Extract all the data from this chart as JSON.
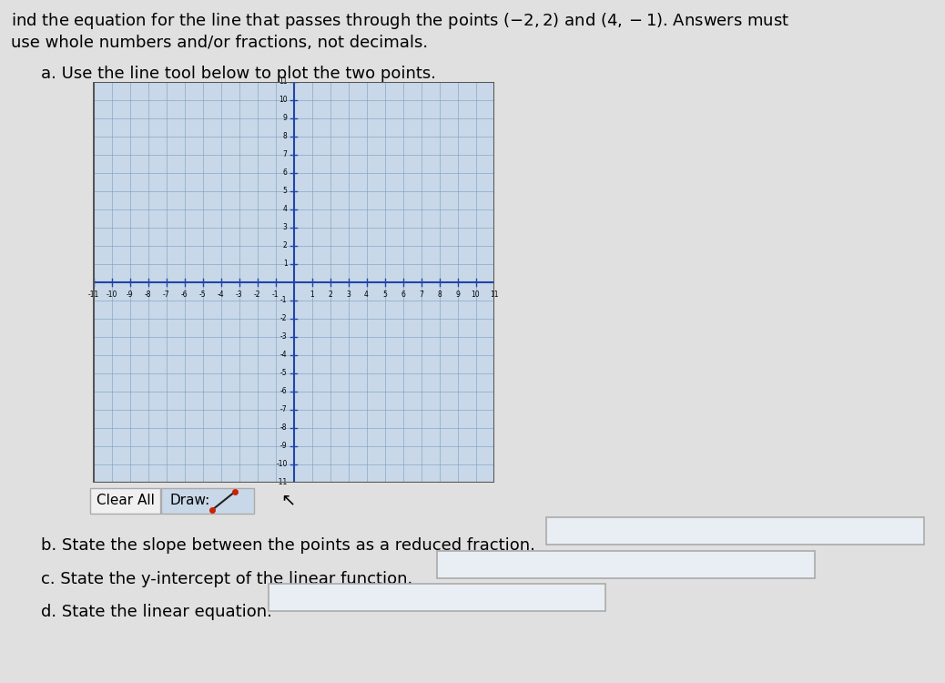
{
  "title_line1": "ind the equation for the line that passes through the points (-2, 2) and (4, -1). Answers must",
  "title_line2": "use whole numbers and/or fractions, not decimals.",
  "part_a": "a. Use the line tool below to plot the two points.",
  "part_b": "b. State the slope between the points as a reduced fraction.",
  "part_c": "c. State the y-intercept of the linear function.",
  "part_d": "d. State the linear equation.",
  "grid_min": -11,
  "grid_max": 11,
  "bg_color": "#c8d8e8",
  "grid_color_major": "#7a9cbf",
  "grid_color_minor": "#a8c0d8",
  "axis_color": "#2244aa",
  "page_bg": "#e0e0e0",
  "point1": [
    -2,
    2
  ],
  "point2": [
    4,
    -1
  ],
  "box_fill": "#e8eef4",
  "box_edge": "#aaaaaa",
  "draw_icon_line_color": "#cc2200",
  "draw_icon_bg": "#c8d8e8",
  "clear_btn_bg": "#f0f0f0",
  "clear_btn_edge": "#aaaaaa"
}
